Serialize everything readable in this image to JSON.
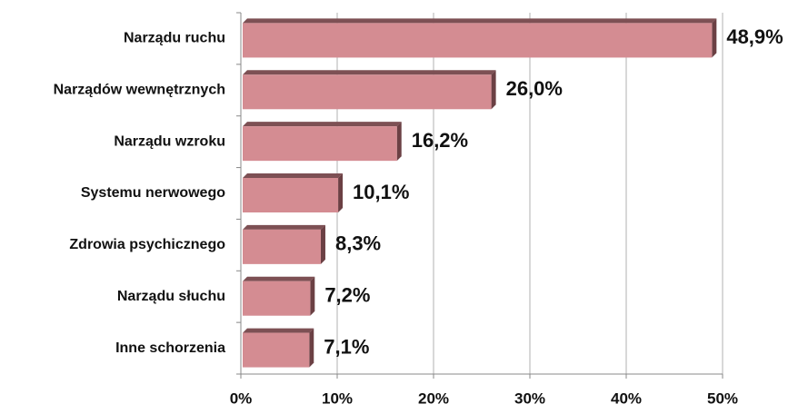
{
  "chart_data": {
    "type": "bar",
    "orientation": "horizontal",
    "categories": [
      "Narządu ruchu",
      "Narządów wewnętrznych",
      "Narządu wzroku",
      "Systemu nerwowego",
      "Zdrowia psychicznego",
      "Narządu słuchu",
      "Inne schorzenia"
    ],
    "values": [
      48.9,
      26.0,
      16.2,
      10.1,
      8.3,
      7.2,
      7.1
    ],
    "value_labels": [
      "48,9%",
      "26,0%",
      "16,2%",
      "10,1%",
      "8,3%",
      "7,2%",
      "7,1%"
    ],
    "color": "#d48c92",
    "xlim": [
      0,
      50
    ],
    "xticks": [
      {
        "value": 0,
        "label": "0%"
      },
      {
        "value": 10,
        "label": "10%"
      },
      {
        "value": 20,
        "label": "20%"
      },
      {
        "value": 30,
        "label": "30%"
      },
      {
        "value": 40,
        "label": "40%"
      },
      {
        "value": 50,
        "label": "50%"
      }
    ],
    "grid": true
  }
}
